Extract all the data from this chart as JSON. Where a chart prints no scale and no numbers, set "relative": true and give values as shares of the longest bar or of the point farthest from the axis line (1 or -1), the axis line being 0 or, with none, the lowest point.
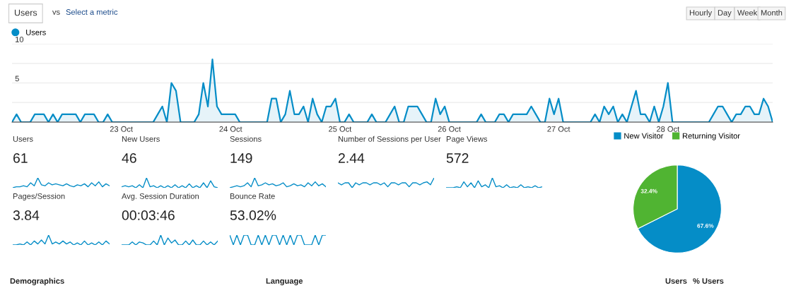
{
  "chart_data": [
    {
      "type": "area",
      "categories": [
        null,
        null,
        null,
        null,
        null,
        null,
        null,
        null,
        null,
        null,
        null,
        null,
        null,
        null,
        null,
        null,
        null,
        null,
        null,
        null,
        null,
        null,
        null,
        null,
        "23 Oct",
        null,
        null,
        null,
        null,
        null,
        null,
        null,
        null,
        null,
        null,
        null,
        null,
        null,
        null,
        null,
        null,
        null,
        null,
        null,
        null,
        null,
        null,
        null,
        "24 Oct",
        null,
        null,
        null,
        null,
        null,
        null,
        null,
        null,
        null,
        null,
        null,
        null,
        null,
        null,
        null,
        null,
        null,
        null,
        null,
        null,
        null,
        null,
        null,
        "25 Oct",
        null,
        null,
        null,
        null,
        null,
        null,
        null,
        null,
        null,
        null,
        null,
        null,
        null,
        null,
        null,
        null,
        null,
        null,
        null,
        null,
        null,
        null,
        null,
        "26 Oct",
        null,
        null,
        null,
        null,
        null,
        null,
        null,
        null,
        null,
        null,
        null,
        null,
        null,
        null,
        null,
        null,
        null,
        null,
        null,
        null,
        null,
        null,
        null,
        "27 Oct",
        null,
        null,
        null,
        null,
        null,
        null,
        null,
        null,
        null,
        null,
        null,
        null,
        null,
        null,
        null,
        null,
        null,
        null,
        null,
        null,
        null,
        null,
        null,
        "28 Oct",
        null,
        null,
        null,
        null,
        null,
        null,
        null,
        null,
        null,
        null,
        null,
        null,
        null,
        null,
        null,
        null,
        null,
        null,
        null,
        null,
        null,
        null,
        null
      ],
      "series": [
        {
          "name": "Users",
          "color": "#058dc7",
          "values": [
            0,
            1,
            0,
            0,
            0,
            1,
            1,
            1,
            0,
            1,
            0,
            1,
            1,
            1,
            1,
            0,
            1,
            1,
            1,
            0,
            0,
            1,
            0,
            0,
            0,
            0,
            0,
            0,
            0,
            0,
            0,
            0,
            1,
            2,
            0,
            5,
            4,
            0,
            0,
            0,
            0,
            1,
            5,
            2,
            8,
            2,
            1,
            1,
            1,
            1,
            0,
            0,
            0,
            0,
            0,
            0,
            0,
            3,
            3,
            0,
            1,
            4,
            1,
            1,
            2,
            0,
            3,
            1,
            0,
            2,
            2,
            3,
            0,
            0,
            1,
            0,
            0,
            0,
            0,
            1,
            0,
            0,
            0,
            1,
            2,
            0,
            0,
            2,
            2,
            2,
            1,
            0,
            0,
            3,
            1,
            2,
            0,
            0,
            0,
            0,
            0,
            0,
            0,
            1,
            0,
            0,
            0,
            1,
            1,
            0,
            1,
            1,
            1,
            1,
            2,
            1,
            0,
            0,
            3,
            1,
            3,
            0,
            0,
            0,
            0,
            0,
            0,
            0,
            1,
            0,
            2,
            1,
            2,
            0,
            1,
            0,
            2,
            4,
            1,
            1,
            0,
            2,
            0,
            2,
            5,
            0,
            0,
            0,
            0,
            0,
            0,
            0,
            0,
            0,
            1,
            2,
            2,
            1,
            0,
            1,
            1,
            2,
            2,
            1,
            1,
            3,
            2,
            0
          ]
        }
      ],
      "ylim": [
        0,
        10
      ],
      "yticks": [
        {
          "value": 2.5,
          "label": null
        },
        5,
        {
          "value": 7.5,
          "label": null
        },
        10
      ],
      "grid": "y",
      "legend": "top left",
      "marker": "none",
      "annotations": [
        "Users",
        "vs",
        "Select a metric",
        "Hourly",
        "Day",
        "Week",
        "Month",
        "Demographics",
        "Language",
        "Users",
        "% Users"
      ]
    },
    {
      "type": "line",
      "relative": true,
      "title": "Users",
      "subtitle": "61",
      "categories": [
        null,
        null,
        null,
        null,
        null,
        null,
        null,
        null,
        null,
        null,
        null,
        null,
        null,
        null,
        null,
        null,
        null,
        null,
        null,
        null,
        null,
        null,
        null,
        null,
        null,
        null,
        null,
        null
      ],
      "series": [
        {
          "color": "#058dc7",
          "values": [
            0,
            0.1,
            0.1,
            0.2,
            0.1,
            0.5,
            0.2,
            1,
            0.3,
            0.2,
            0.5,
            0.3,
            0.4,
            0.3,
            0.2,
            0.4,
            0.2,
            0.1,
            0.3,
            0.2,
            0.4,
            0.1,
            0.5,
            0.2,
            0.6,
            0.1,
            0.4,
            0.2
          ]
        }
      ]
    },
    {
      "type": "line",
      "relative": true,
      "title": "New Users",
      "subtitle": "46",
      "categories": [
        null,
        null,
        null,
        null,
        null,
        null,
        null,
        null,
        null,
        null,
        null,
        null,
        null,
        null,
        null,
        null,
        null,
        null,
        null,
        null,
        null,
        null,
        null,
        null,
        null,
        null,
        null,
        null
      ],
      "series": [
        {
          "color": "#058dc7",
          "values": [
            0.1,
            0.2,
            0.1,
            0.2,
            0,
            0.3,
            0,
            1,
            0.1,
            0.2,
            0,
            0.2,
            0,
            0.2,
            0,
            0.3,
            0,
            0.2,
            0,
            0.4,
            0,
            0.2,
            0,
            0.5,
            0,
            0.7,
            0.1,
            0
          ]
        }
      ]
    },
    {
      "type": "line",
      "relative": true,
      "title": "Sessions",
      "subtitle": "149",
      "categories": [
        null,
        null,
        null,
        null,
        null,
        null,
        null,
        null,
        null,
        null,
        null,
        null,
        null,
        null,
        null,
        null,
        null,
        null,
        null,
        null,
        null,
        null,
        null,
        null,
        null,
        null,
        null,
        null
      ],
      "series": [
        {
          "color": "#058dc7",
          "values": [
            0,
            0.1,
            0.2,
            0.1,
            0.2,
            0.5,
            0.1,
            1,
            0.2,
            0.3,
            0.5,
            0.3,
            0.4,
            0.2,
            0.3,
            0.5,
            0.1,
            0.2,
            0.4,
            0.2,
            0.3,
            0.1,
            0.5,
            0.2,
            0.6,
            0.2,
            0.4,
            0.1
          ]
        }
      ]
    },
    {
      "type": "line",
      "relative": true,
      "title": "Number of Sessions per User",
      "subtitle": "2.44",
      "categories": [
        null,
        null,
        null,
        null,
        null,
        null,
        null,
        null,
        null,
        null,
        null,
        null,
        null,
        null,
        null,
        null,
        null,
        null,
        null,
        null,
        null,
        null,
        null,
        null,
        null,
        null,
        null,
        null
      ],
      "series": [
        {
          "color": "#058dc7",
          "values": [
            0.5,
            0.3,
            0.5,
            0.5,
            0,
            0.5,
            0.3,
            0.5,
            0.5,
            0.3,
            0.5,
            0.5,
            0.3,
            0.5,
            0.1,
            0.5,
            0.5,
            0.3,
            0.5,
            0.5,
            0.1,
            0.5,
            0.5,
            0.3,
            0.5,
            0.6,
            0.3,
            1
          ]
        }
      ]
    },
    {
      "type": "line",
      "relative": true,
      "title": "Page Views",
      "subtitle": "572",
      "categories": [
        null,
        null,
        null,
        null,
        null,
        null,
        null,
        null,
        null,
        null,
        null,
        null,
        null,
        null,
        null,
        null,
        null,
        null,
        null,
        null,
        null,
        null,
        null,
        null,
        null,
        null,
        null,
        null
      ],
      "series": [
        {
          "color": "#058dc7",
          "values": [
            0,
            0,
            0,
            0.1,
            0,
            0.6,
            0.1,
            0.5,
            0,
            0.7,
            0.1,
            0.3,
            0,
            1,
            0.1,
            0.2,
            0,
            0.3,
            0,
            0.1,
            0,
            0.3,
            0,
            0.1,
            0,
            0.2,
            0,
            0.1
          ]
        }
      ]
    },
    {
      "type": "line",
      "relative": true,
      "title": "Pages/Session",
      "subtitle": "3.84",
      "categories": [
        null,
        null,
        null,
        null,
        null,
        null,
        null,
        null,
        null,
        null,
        null,
        null,
        null,
        null,
        null,
        null,
        null,
        null,
        null,
        null,
        null,
        null,
        null,
        null,
        null,
        null,
        null,
        null
      ],
      "series": [
        {
          "color": "#058dc7",
          "values": [
            0,
            0,
            0.1,
            0,
            0.3,
            0,
            0.4,
            0.1,
            0.5,
            0.1,
            1,
            0.1,
            0.3,
            0.1,
            0.4,
            0.1,
            0.3,
            0,
            0.2,
            0,
            0.4,
            0,
            0.2,
            0,
            0.3,
            0,
            0.4,
            0.1
          ]
        }
      ]
    },
    {
      "type": "line",
      "relative": true,
      "title": "Avg. Session Duration",
      "subtitle": "00:03:46",
      "categories": [
        null,
        null,
        null,
        null,
        null,
        null,
        null,
        null,
        null,
        null,
        null,
        null,
        null,
        null,
        null,
        null,
        null,
        null,
        null,
        null,
        null,
        null,
        null,
        null,
        null,
        null,
        null,
        null
      ],
      "series": [
        {
          "color": "#058dc7",
          "values": [
            0,
            0,
            0,
            0.3,
            0,
            0.3,
            0.2,
            0,
            0,
            0.4,
            0,
            1,
            0,
            0.7,
            0.2,
            0.5,
            0,
            0,
            0.4,
            0,
            0.5,
            0,
            0,
            0.4,
            0,
            0.3,
            0,
            0.4
          ]
        }
      ]
    },
    {
      "type": "line",
      "relative": true,
      "title": "Bounce Rate",
      "subtitle": "53.02%",
      "categories": [
        null,
        null,
        null,
        null,
        null,
        null,
        null,
        null,
        null,
        null,
        null,
        null,
        null,
        null,
        null,
        null,
        null,
        null,
        null,
        null,
        null,
        null,
        null,
        null,
        null,
        null,
        null,
        null
      ],
      "series": [
        {
          "color": "#058dc7",
          "values": [
            1,
            0,
            1,
            0,
            1,
            1,
            0,
            0,
            1,
            0,
            1,
            0,
            1,
            1,
            0,
            1,
            0,
            1,
            0,
            1,
            1,
            0,
            0,
            0,
            1,
            0,
            1,
            1
          ]
        }
      ]
    },
    {
      "type": "pie",
      "categories": [
        "New Visitor",
        "Returning Visitor"
      ],
      "values": [
        67.6,
        32.4
      ],
      "colors": [
        "#058dc7",
        "#50b432"
      ],
      "value_labels": [
        "67.6%",
        "32.4%"
      ],
      "legend": "top"
    }
  ]
}
